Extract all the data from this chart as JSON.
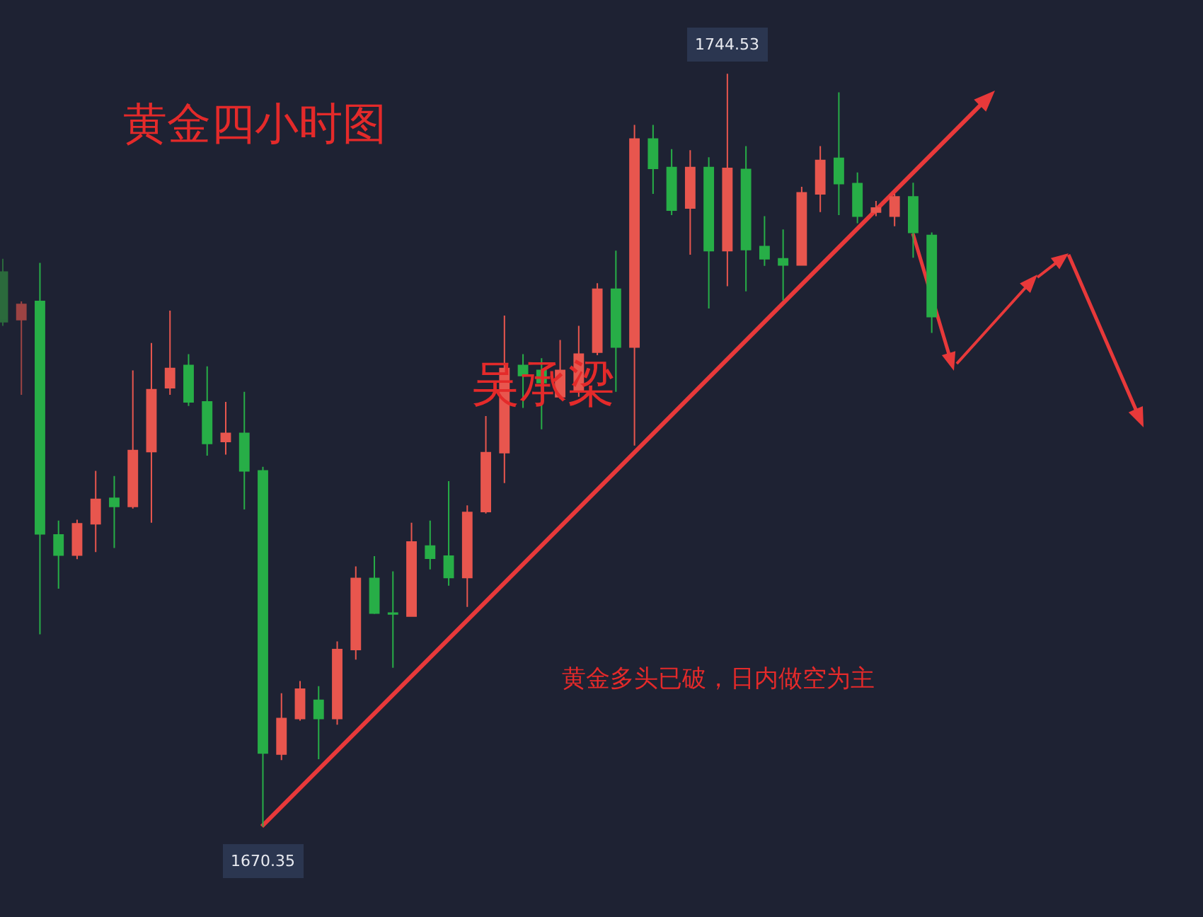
{
  "chart_data": {
    "type": "candlestick",
    "title": "黄金四小时图",
    "categories": [
      null,
      null,
      null,
      null,
      null,
      null,
      null,
      null,
      null,
      null,
      null,
      null,
      null,
      null,
      null,
      null,
      null,
      null,
      null,
      null,
      null,
      null,
      null,
      null,
      null,
      null,
      null,
      null,
      null,
      null,
      null,
      null,
      null,
      null,
      null,
      null,
      null,
      null,
      null,
      null,
      null,
      null,
      null,
      null,
      null,
      null,
      null,
      null,
      null,
      null,
      null
    ],
    "ohlc": [
      [
        1725.0,
        1726.3,
        1719.7,
        1720.1
      ],
      [
        1720.3,
        1722.1,
        1712.9,
        1721.8
      ],
      [
        1722.1,
        1725.9,
        1689.3,
        1699.2
      ],
      [
        1699.1,
        1700.5,
        1693.8,
        1697.1
      ],
      [
        1697.1,
        1700.6,
        1696.7,
        1700.2
      ],
      [
        1700.2,
        1705.4,
        1697.4,
        1702.6
      ],
      [
        1702.7,
        1704.9,
        1697.8,
        1701.9
      ],
      [
        1701.9,
        1715.3,
        1701.7,
        1707.4
      ],
      [
        1707.3,
        1718.0,
        1700.3,
        1713.4
      ],
      [
        1713.6,
        1721.2,
        1712.9,
        1715.5
      ],
      [
        1715.8,
        1716.9,
        1711.8,
        1712.2
      ],
      [
        1712.2,
        1715.7,
        1706.9,
        1708.1
      ],
      [
        1708.3,
        1712.2,
        1707.0,
        1709.1
      ],
      [
        1709.1,
        1713.2,
        1701.6,
        1705.4
      ],
      [
        1705.4,
        1705.8,
        1670.35,
        1677.6
      ],
      [
        1677.5,
        1683.5,
        1676.9,
        1681.0
      ],
      [
        1681.0,
        1684.7,
        1680.8,
        1683.9
      ],
      [
        1682.8,
        1684.2,
        1677.0,
        1681.0
      ],
      [
        1681.0,
        1688.6,
        1680.4,
        1687.8
      ],
      [
        1687.8,
        1696.0,
        1686.8,
        1694.8
      ],
      [
        1694.8,
        1697.0,
        1691.3,
        1691.4
      ],
      [
        1691.4,
        1695.5,
        1686.0,
        1691.3
      ],
      [
        1691.1,
        1700.3,
        1691.1,
        1698.4
      ],
      [
        1698.0,
        1700.5,
        1695.7,
        1696.8
      ],
      [
        1697.0,
        1704.4,
        1694.1,
        1694.9
      ],
      [
        1694.9,
        1702.0,
        1692.0,
        1701.3
      ],
      [
        1701.4,
        1710.8,
        1701.2,
        1707.2
      ],
      [
        1707.2,
        1720.7,
        1704.2,
        1715.5
      ],
      [
        1715.8,
        1716.9,
        1711.6,
        1714.8
      ],
      [
        1715.3,
        1716.5,
        1709.5,
        1714.1
      ],
      [
        1712.7,
        1718.3,
        1712.5,
        1715.3
      ],
      [
        1713.2,
        1719.7,
        1712.7,
        1716.9
      ],
      [
        1717.1,
        1723.9,
        1716.8,
        1723.3
      ],
      [
        1723.3,
        1727.1,
        1713.2,
        1717.6
      ],
      [
        1717.6,
        1739.5,
        1707.9,
        1738.1
      ],
      [
        1738.1,
        1739.5,
        1732.7,
        1735.2
      ],
      [
        1735.3,
        1737.1,
        1730.6,
        1731.1
      ],
      [
        1731.3,
        1737.0,
        1726.7,
        1735.3
      ],
      [
        1735.3,
        1736.3,
        1721.4,
        1727.1
      ],
      [
        1727.1,
        1744.53,
        1723.6,
        1735.2
      ],
      [
        1735.1,
        1737.4,
        1723.1,
        1727.2
      ],
      [
        1727.5,
        1730.5,
        1725.6,
        1726.3
      ],
      [
        1726.3,
        1729.2,
        1722.2,
        1725.7
      ],
      [
        1725.7,
        1733.4,
        1725.7,
        1732.8
      ],
      [
        1732.7,
        1737.4,
        1730.9,
        1736.0
      ],
      [
        1736.2,
        1742.7,
        1730.6,
        1733.7
      ],
      [
        1733.7,
        1734.8,
        1729.8,
        1730.5
      ],
      [
        1730.9,
        1732.0,
        1730.5,
        1731.3
      ],
      [
        1730.5,
        1732.7,
        1729.5,
        1732.4
      ],
      [
        1732.4,
        1733.8,
        1726.4,
        1728.9
      ],
      [
        1728.6,
        1728.9,
        1719.0,
        1720.6
      ]
    ],
    "colors": [
      "#2b6a3c",
      "#9c4343",
      "#27ae47",
      "#27ae47",
      "#e8564e",
      "#e8564e",
      "#27ae47",
      "#e8564e",
      "#e8564e",
      "#e8564e",
      "#27ae47",
      "#27ae47",
      "#e8564e",
      "#27ae47",
      "#27ae47",
      "#e8564e",
      "#e8564e",
      "#27ae47",
      "#e8564e",
      "#e8564e",
      "#27ae47",
      "#27ae47",
      "#e8564e",
      "#27ae47",
      "#27ae47",
      "#e8564e",
      "#e8564e",
      "#e8564e",
      "#27ae47",
      "#27ae47",
      "#e8564e",
      "#e8564e",
      "#e8564e",
      "#27ae47",
      "#e8564e",
      "#27ae47",
      "#27ae47",
      "#e8564e",
      "#27ae47",
      "#e8564e",
      "#27ae47",
      "#27ae47",
      "#27ae47",
      "#e8564e",
      "#e8564e",
      "#27ae47",
      "#27ae47",
      "#e8564e",
      "#e8564e",
      "#27ae47",
      "#27ae47"
    ],
    "annotations": [
      {
        "text": "1744.53",
        "y": 1744.53
      },
      {
        "text": "1670.35",
        "y": 1670.35
      },
      "吴承梁",
      "黄金多头已破，日内做空为主"
    ]
  }
}
